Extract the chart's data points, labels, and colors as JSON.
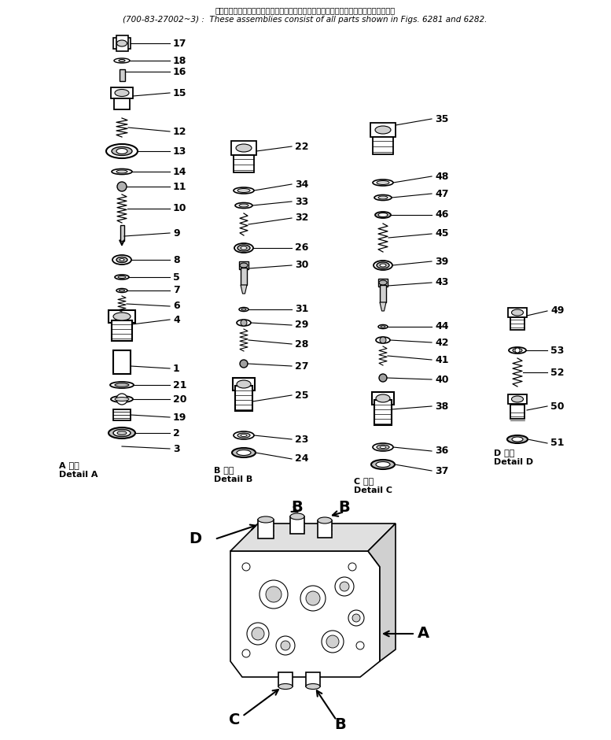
{
  "title_jp": "これらのアセンブリの構成部品は図６２８１図および図６２８２図の部品を含みます。",
  "title_en": "(700-83-27002~3) :  These assemblies consist of all parts shown in Figs. 6281 and 6282.",
  "background": "#ffffff",
  "detail_a_label_jp": "A 詳細",
  "detail_a_label_en": "Detail A",
  "detail_b_label_jp": "B 詳細",
  "detail_b_label_en": "Detail B",
  "detail_c_label_jp": "C 詳細",
  "detail_c_label_en": "Detail C",
  "detail_d_label_jp": "D 詳細",
  "detail_d_label_en": "Detail D",
  "figsize": [
    7.77,
    9.4
  ],
  "dpi": 100
}
